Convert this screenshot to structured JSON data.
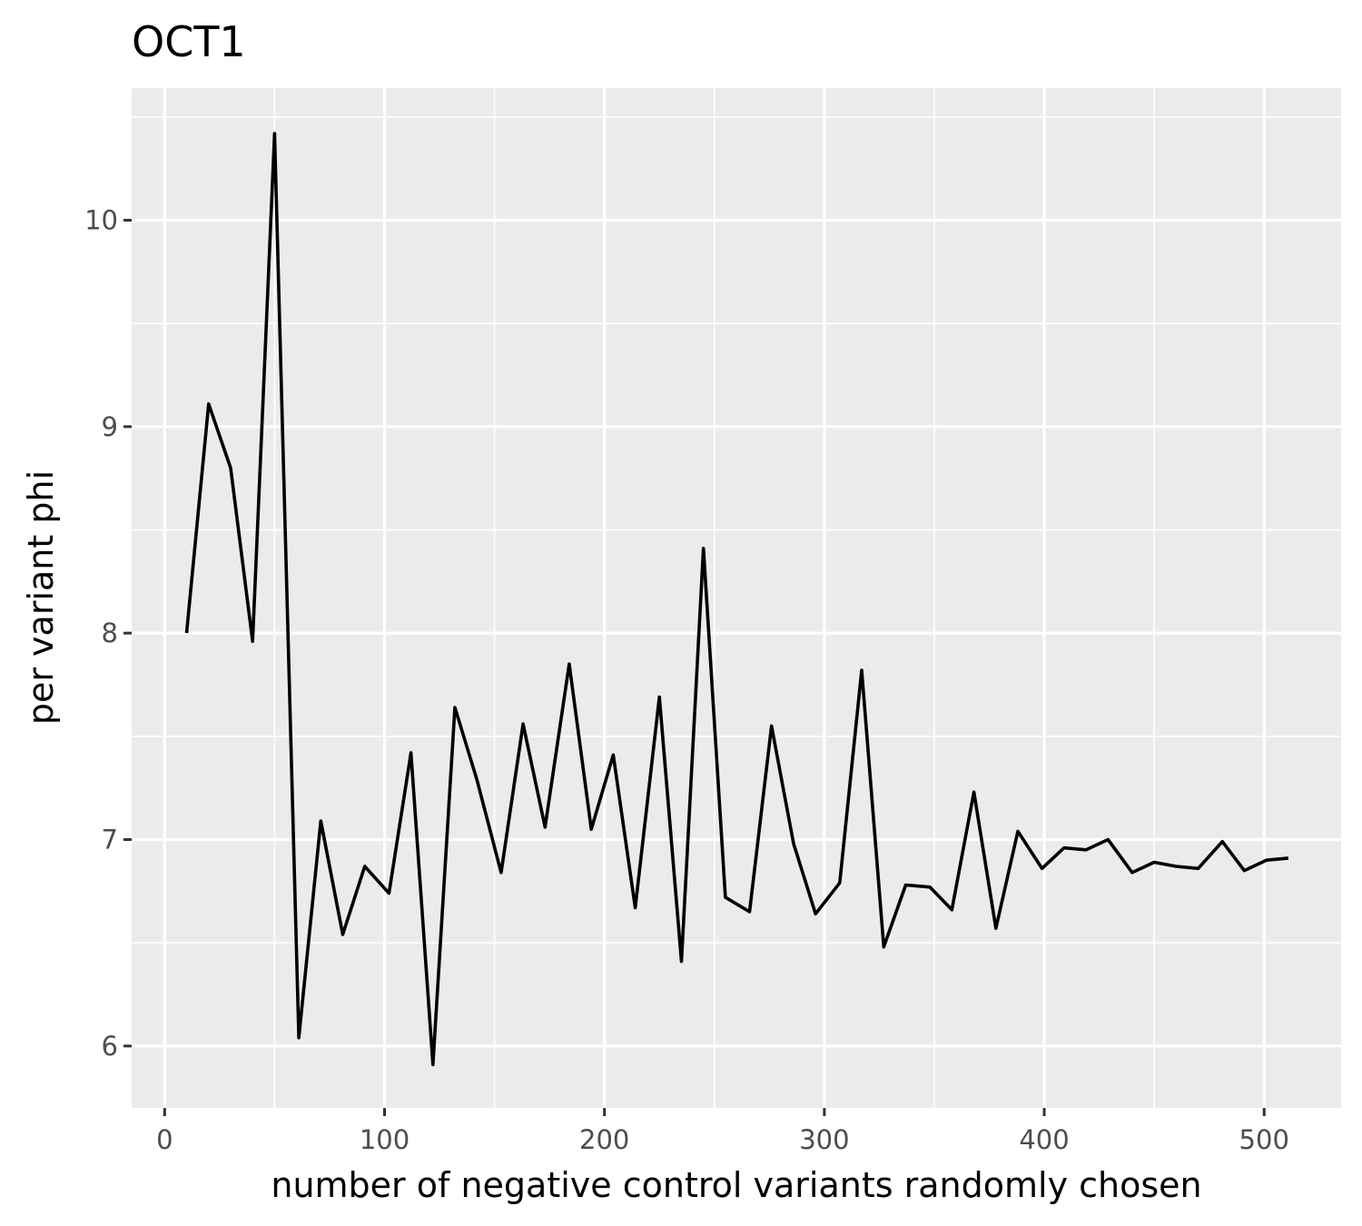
{
  "chart_data": {
    "type": "line",
    "title": "OCT1",
    "xlabel": "number of negative control variants randomly chosen",
    "ylabel": "per variant phi",
    "xlim": [
      -15,
      535
    ],
    "ylim": [
      5.7,
      10.64
    ],
    "x_ticks": [
      0,
      100,
      200,
      300,
      400,
      500
    ],
    "y_ticks": [
      6,
      7,
      8,
      9,
      10
    ],
    "x_tick_labels": [
      "0",
      "100",
      "200",
      "300",
      "400",
      "500"
    ],
    "y_tick_labels": [
      "6",
      "7",
      "8",
      "9",
      "10"
    ],
    "grid": true,
    "background": "#ebebeb",
    "line_color": "#000000",
    "series": [
      {
        "x": [
          10,
          20,
          30,
          40,
          50,
          61,
          71,
          81,
          91,
          102,
          112,
          122,
          132,
          142,
          153,
          163,
          173,
          184,
          194,
          204,
          214,
          225,
          235,
          245,
          255,
          266,
          276,
          286,
          296,
          307,
          317,
          327,
          337,
          348,
          358,
          368,
          378,
          388,
          399,
          409,
          419,
          429,
          440,
          450,
          460,
          470,
          481,
          491,
          501,
          511
        ],
        "values": [
          8.0,
          9.11,
          8.8,
          7.96,
          10.42,
          6.04,
          7.09,
          6.54,
          6.87,
          6.74,
          7.42,
          5.91,
          7.64,
          7.29,
          6.84,
          7.56,
          7.06,
          7.85,
          7.05,
          7.41,
          6.67,
          7.69,
          6.41,
          8.41,
          6.72,
          6.65,
          7.55,
          6.98,
          6.64,
          6.79,
          7.82,
          6.48,
          6.78,
          6.77,
          6.66,
          7.23,
          6.57,
          7.04,
          6.86,
          6.96,
          6.95,
          7.0,
          6.84,
          6.89,
          6.87,
          6.86,
          6.99,
          6.85,
          6.9,
          6.91
        ]
      }
    ]
  }
}
